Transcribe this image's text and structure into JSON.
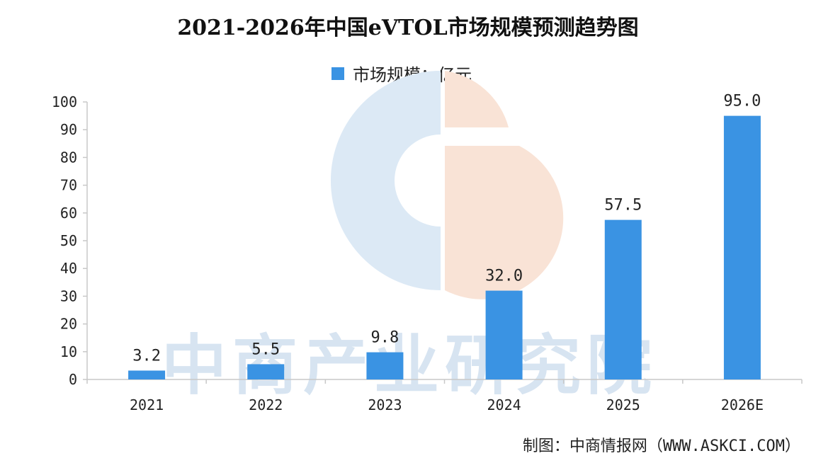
{
  "title": "2021-2026年中国eVTOL市场规模预测趋势图",
  "source": "制图：中商情报网（WWW.ASKCI.COM）",
  "watermark": "中商产业研究院",
  "colors": {
    "bar": "#3a93e3",
    "axis": "#c8c8c8",
    "text": "#222222",
    "watermark_text": "#d7e4f1",
    "watermark_blue": "#dce9f5",
    "watermark_orange": "#f9e3d6"
  },
  "chart_data": {
    "type": "bar",
    "title": "2021-2026年中国eVTOL市场规模预测趋势图",
    "categories": [
      "2021",
      "2022",
      "2023",
      "2024",
      "2025",
      "2026E"
    ],
    "series": [
      {
        "name": "市场规模：亿元",
        "values": [
          3.2,
          5.5,
          9.8,
          32.0,
          57.5,
          95.0
        ]
      }
    ],
    "data_labels": [
      "3.2",
      "5.5",
      "9.8",
      "32.0",
      "57.5",
      "95.0"
    ],
    "y_ticks": [
      0,
      10,
      20,
      30,
      40,
      50,
      60,
      70,
      80,
      90,
      100
    ],
    "ylim": [
      0,
      100
    ],
    "xlabel": "",
    "ylabel": "",
    "legend": "top-center",
    "grid": false
  }
}
